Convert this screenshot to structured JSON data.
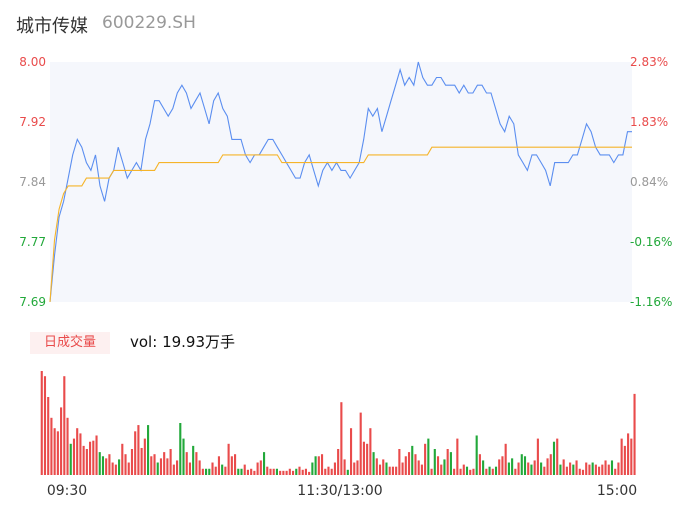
{
  "header": {
    "name": "城市传媒",
    "code": "600229.SH"
  },
  "volume_panel": {
    "badge": "日成交量",
    "vol_label": "vol:",
    "vol_value": "19.93万手"
  },
  "colors": {
    "price_line": "#5b8ef0",
    "avg_line": "#f5b42a",
    "up": "#e94b4b",
    "down": "#22a83a",
    "neutral": "#999999",
    "area_fill": "#f5f7fc"
  },
  "chart_data": [
    {
      "type": "line",
      "title": "",
      "series": [
        {
          "name": "",
          "values": [
            7.69,
            7.75,
            7.8,
            7.82,
            7.85,
            7.88,
            7.9,
            7.89,
            7.87,
            7.86,
            7.88,
            7.84,
            7.82,
            7.85,
            7.86,
            7.89,
            7.87,
            7.85,
            7.86,
            7.87,
            7.86,
            7.9,
            7.92,
            7.95,
            7.95,
            7.94,
            7.93,
            7.94,
            7.96,
            7.97,
            7.96,
            7.94,
            7.95,
            7.96,
            7.94,
            7.92,
            7.95,
            7.96,
            7.94,
            7.93,
            7.9,
            7.9,
            7.9,
            7.88,
            7.87,
            7.88,
            7.88,
            7.89,
            7.9,
            7.9,
            7.89,
            7.88,
            7.87,
            7.86,
            7.85,
            7.85,
            7.87,
            7.88,
            7.86,
            7.84,
            7.86,
            7.87,
            7.86,
            7.87,
            7.86,
            7.86,
            7.85,
            7.86,
            7.87,
            7.9,
            7.94,
            7.93,
            7.94,
            7.91,
            7.93,
            7.95,
            7.97,
            7.99,
            7.97,
            7.98,
            7.97,
            8.0,
            7.98,
            7.97,
            7.97,
            7.98,
            7.98,
            7.97,
            7.97,
            7.97,
            7.96,
            7.97,
            7.96,
            7.96,
            7.97,
            7.97,
            7.96,
            7.96,
            7.94,
            7.92,
            7.91,
            7.93,
            7.92,
            7.88,
            7.87,
            7.86,
            7.88,
            7.88,
            7.87,
            7.86,
            7.84,
            7.87,
            7.87,
            7.87,
            7.87,
            7.88,
            7.88,
            7.9,
            7.92,
            7.91,
            7.89,
            7.88,
            7.88,
            7.88,
            7.87,
            7.88,
            7.88,
            7.91,
            7.91
          ]
        },
        {
          "name": "",
          "values": [
            7.69,
            7.77,
            7.81,
            7.83,
            7.84,
            7.84,
            7.84,
            7.84,
            7.85,
            7.85,
            7.85,
            7.85,
            7.85,
            7.85,
            7.86,
            7.86,
            7.86,
            7.86,
            7.86,
            7.86,
            7.86,
            7.86,
            7.86,
            7.86,
            7.87,
            7.87,
            7.87,
            7.87,
            7.87,
            7.87,
            7.87,
            7.87,
            7.87,
            7.87,
            7.87,
            7.87,
            7.87,
            7.87,
            7.88,
            7.88,
            7.88,
            7.88,
            7.88,
            7.88,
            7.88,
            7.88,
            7.88,
            7.88,
            7.88,
            7.88,
            7.88,
            7.87,
            7.87,
            7.87,
            7.87,
            7.87,
            7.87,
            7.87,
            7.87,
            7.87,
            7.87,
            7.87,
            7.87,
            7.87,
            7.87,
            7.87,
            7.87,
            7.87,
            7.87,
            7.87,
            7.88,
            7.88,
            7.88,
            7.88,
            7.88,
            7.88,
            7.88,
            7.88,
            7.88,
            7.88,
            7.88,
            7.88,
            7.88,
            7.88,
            7.89,
            7.89,
            7.89,
            7.89,
            7.89,
            7.89,
            7.89,
            7.89,
            7.89,
            7.89,
            7.89,
            7.89,
            7.89,
            7.89,
            7.89,
            7.89,
            7.89,
            7.89,
            7.89,
            7.89,
            7.89,
            7.89,
            7.89,
            7.89,
            7.89,
            7.89,
            7.89,
            7.89,
            7.89,
            7.89,
            7.89,
            7.89,
            7.89,
            7.89,
            7.89,
            7.89,
            7.89,
            7.89,
            7.89,
            7.89,
            7.89,
            7.89,
            7.89,
            7.89,
            7.89
          ]
        }
      ],
      "y_ticks_left": [
        "8.00",
        "7.92",
        "7.84",
        "7.77",
        "7.69"
      ],
      "y_ticks_right": [
        "2.83%",
        "1.83%",
        "0.84%",
        "-0.16%",
        "-1.16%"
      ],
      "ylim": [
        7.69,
        8.0
      ],
      "grid": false
    },
    {
      "type": "bar",
      "title": "",
      "x_ticks": [
        "09:30",
        "11:30/13:00",
        "15:00"
      ],
      "values": [
        100,
        95,
        75,
        55,
        45,
        42,
        65,
        95,
        55,
        30,
        35,
        45,
        40,
        28,
        25,
        32,
        33,
        38,
        22,
        18,
        16,
        20,
        12,
        10,
        15,
        30,
        20,
        12,
        25,
        42,
        48,
        26,
        35,
        48,
        18,
        20,
        12,
        16,
        22,
        16,
        25,
        10,
        14,
        50,
        35,
        22,
        12,
        28,
        22,
        14,
        6,
        6,
        6,
        12,
        8,
        18,
        10,
        8,
        30,
        18,
        20,
        6,
        6,
        10,
        5,
        6,
        4,
        12,
        14,
        22,
        8,
        6,
        6,
        6,
        4,
        4,
        4,
        6,
        4,
        6,
        8,
        5,
        6,
        3,
        12,
        18,
        18,
        20,
        6,
        8,
        6,
        12,
        25,
        70,
        15,
        5,
        45,
        12,
        14,
        60,
        32,
        30,
        45,
        22,
        16,
        10,
        15,
        12,
        8,
        8,
        8,
        25,
        12,
        18,
        22,
        28,
        20,
        14,
        10,
        30,
        35,
        6,
        25,
        18,
        10,
        15,
        25,
        22,
        6,
        35,
        6,
        10,
        8,
        5,
        6,
        38,
        20,
        14,
        6,
        8,
        6,
        8,
        15,
        18,
        30,
        12,
        16,
        6,
        12,
        20,
        18,
        12,
        10,
        14,
        35,
        12,
        8,
        16,
        20,
        32,
        35,
        10,
        15,
        8,
        12,
        10,
        14,
        6,
        5,
        12,
        10,
        12,
        10,
        8,
        10,
        14,
        10,
        14,
        6,
        12,
        35,
        28,
        40,
        35,
        78
      ],
      "colors": [
        "up",
        "up",
        "up",
        "up",
        "up",
        "up",
        "up",
        "up",
        "up",
        "down",
        "up",
        "up",
        "up",
        "up",
        "up",
        "up",
        "up",
        "up",
        "down",
        "down",
        "up",
        "up",
        "up",
        "up",
        "down",
        "up",
        "up",
        "up",
        "up",
        "up",
        "up",
        "up",
        "up",
        "down",
        "up",
        "up",
        "down",
        "up",
        "up",
        "up",
        "up",
        "up",
        "up",
        "down",
        "down",
        "up",
        "up",
        "down",
        "up",
        "up",
        "up",
        "down",
        "down",
        "up",
        "up",
        "up",
        "down",
        "up",
        "up",
        "up",
        "up",
        "down",
        "down",
        "up",
        "up",
        "up",
        "up",
        "up",
        "up",
        "down",
        "up",
        "up",
        "up",
        "down",
        "up",
        "up",
        "up",
        "up",
        "up",
        "down",
        "up",
        "up",
        "up",
        "up",
        "down",
        "down",
        "up",
        "up",
        "up",
        "up",
        "up",
        "up",
        "up",
        "up",
        "up",
        "down",
        "up",
        "up",
        "up",
        "up",
        "up",
        "up",
        "up",
        "down",
        "up",
        "up",
        "up",
        "down",
        "up",
        "up",
        "up",
        "up",
        "up",
        "up",
        "up",
        "down",
        "up",
        "up",
        "up",
        "up",
        "down",
        "up",
        "down",
        "up",
        "up",
        "down",
        "up",
        "down",
        "up",
        "up",
        "up",
        "up",
        "down",
        "up",
        "up",
        "down",
        "up",
        "down",
        "up",
        "down",
        "up",
        "down",
        "up",
        "up",
        "up",
        "down",
        "down",
        "up",
        "up",
        "down",
        "down",
        "up",
        "down",
        "up",
        "up",
        "down",
        "up",
        "up",
        "up",
        "down",
        "up",
        "down",
        "up",
        "up",
        "up",
        "down",
        "up",
        "up",
        "up",
        "up",
        "up",
        "down",
        "up",
        "up",
        "up",
        "up",
        "up",
        "down",
        "up",
        "up",
        "up",
        "up",
        "up",
        "up",
        "up"
      ]
    }
  ]
}
